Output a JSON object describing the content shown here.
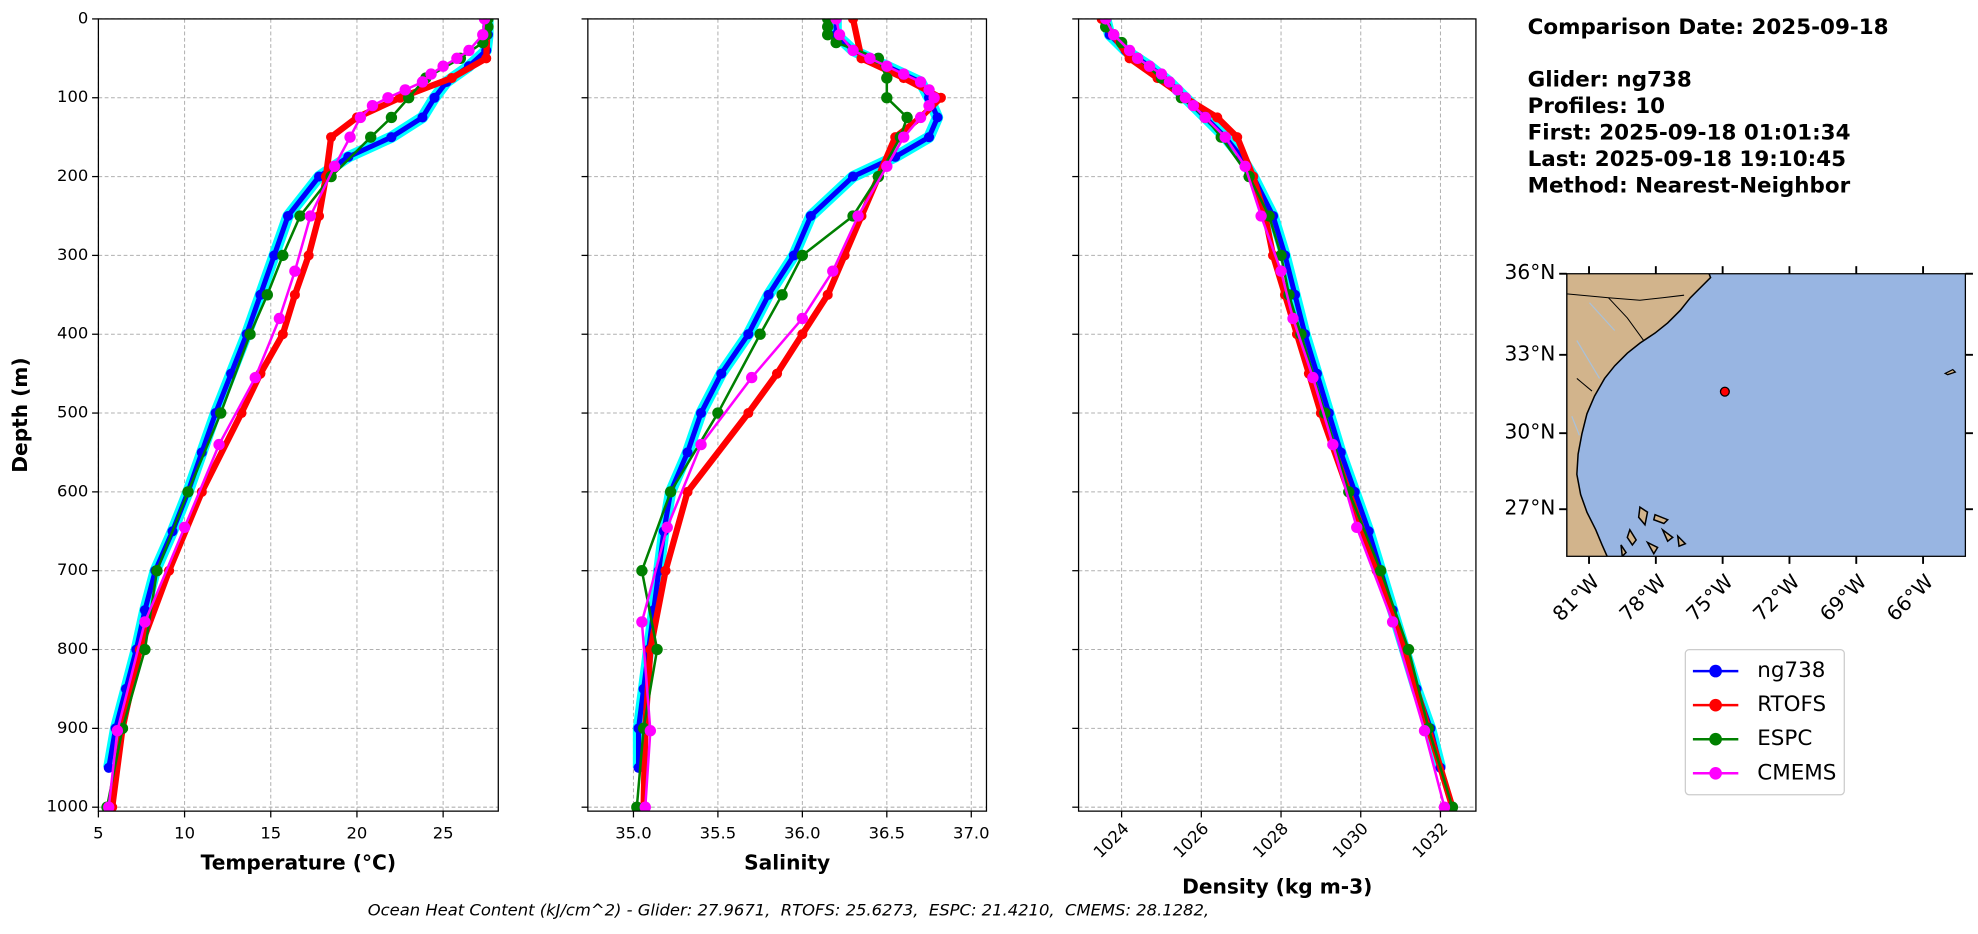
{
  "chart_data": [
    {
      "type": "profile",
      "xlabel": "Temperature (°C)",
      "ylabel": "Depth (m)",
      "legend": true,
      "grid": true,
      "xlim": [
        5,
        28.2
      ],
      "xticks": [
        5,
        10,
        15,
        20,
        25
      ],
      "ylim": [
        1005,
        0
      ],
      "yticks": [
        0,
        100,
        200,
        300,
        400,
        500,
        600,
        700,
        800,
        900,
        1000
      ],
      "series": [
        {
          "name": "ng738",
          "color": "#0000ff",
          "halo_color": "#00ffff",
          "linewidth": 4,
          "depth": [
            0,
            20,
            40,
            60,
            80,
            100,
            125,
            150,
            175,
            200,
            250,
            300,
            350,
            400,
            450,
            500,
            550,
            600,
            650,
            700,
            750,
            800,
            850,
            900,
            950
          ],
          "values": [
            27.6,
            27.6,
            27.5,
            26.5,
            25.2,
            24.5,
            23.8,
            22.0,
            19.5,
            17.8,
            16.0,
            15.2,
            14.4,
            13.6,
            12.7,
            11.8,
            11.0,
            10.2,
            9.3,
            8.3,
            7.7,
            7.2,
            6.6,
            6.0,
            5.6
          ]
        },
        {
          "name": "RTOFS",
          "color": "#ff0000",
          "linewidth": 5,
          "depth": [
            0,
            50,
            75,
            100,
            125,
            150,
            200,
            250,
            300,
            350,
            400,
            450,
            500,
            600,
            700,
            800,
            900,
            1000
          ],
          "values": [
            27.6,
            27.5,
            25.5,
            22.5,
            20.0,
            18.5,
            18.2,
            17.8,
            17.2,
            16.4,
            15.7,
            14.4,
            13.3,
            11.0,
            9.1,
            7.4,
            6.4,
            5.8
          ]
        },
        {
          "name": "ESPC",
          "color": "#008000",
          "linewidth": 2,
          "depth": [
            0,
            10,
            20,
            30,
            50,
            75,
            100,
            125,
            150,
            200,
            250,
            300,
            350,
            400,
            500,
            600,
            700,
            800,
            900,
            1000
          ],
          "values": [
            27.6,
            27.6,
            27.5,
            27.3,
            26.0,
            24.0,
            23.0,
            22.0,
            20.8,
            18.5,
            16.7,
            15.7,
            14.8,
            13.8,
            12.1,
            10.2,
            8.4,
            7.7,
            6.4,
            5.5
          ]
        },
        {
          "name": "CMEMS",
          "color": "#ff00ff",
          "linewidth": 2,
          "depth": [
            0,
            20,
            40,
            50,
            60,
            70,
            80,
            90,
            100,
            110,
            125,
            150,
            187,
            250,
            320,
            380,
            455,
            540,
            645,
            765,
            903,
            1000
          ],
          "values": [
            27.4,
            27.3,
            26.5,
            25.8,
            25.0,
            24.3,
            23.8,
            22.8,
            21.8,
            20.9,
            20.2,
            19.6,
            18.7,
            17.3,
            16.4,
            15.5,
            14.1,
            12.0,
            10.0,
            7.7,
            6.1,
            5.6
          ]
        }
      ]
    },
    {
      "type": "profile",
      "xlabel": "Salinity",
      "sharey": true,
      "grid": true,
      "xlim": [
        34.73,
        37.09
      ],
      "xticks": [
        {
          "value": 35,
          "label": "35.0"
        },
        {
          "value": 35.5,
          "label": "35.5"
        },
        {
          "value": 36,
          "label": "36.0"
        },
        {
          "value": 36.5,
          "label": "36.5"
        },
        {
          "value": 37,
          "label": "37.0"
        }
      ],
      "series": [
        {
          "name": "ng738",
          "color": "#0000ff",
          "halo_color": "#00ffff",
          "linewidth": 4,
          "depth": [
            0,
            20,
            40,
            60,
            80,
            100,
            125,
            150,
            175,
            200,
            250,
            300,
            350,
            400,
            450,
            500,
            550,
            600,
            650,
            700,
            750,
            800,
            850,
            900,
            950
          ],
          "values": [
            36.2,
            36.2,
            36.3,
            36.5,
            36.7,
            36.75,
            36.8,
            36.75,
            36.55,
            36.3,
            36.05,
            35.95,
            35.8,
            35.68,
            35.52,
            35.4,
            35.32,
            35.22,
            35.18,
            35.15,
            35.12,
            35.09,
            35.06,
            35.03,
            35.03
          ]
        },
        {
          "name": "RTOFS",
          "color": "#ff0000",
          "linewidth": 5,
          "depth": [
            0,
            50,
            75,
            100,
            125,
            150,
            200,
            250,
            300,
            350,
            400,
            450,
            500,
            600,
            700,
            800,
            900,
            1000
          ],
          "values": [
            36.3,
            36.35,
            36.6,
            36.82,
            36.7,
            36.55,
            36.45,
            36.35,
            36.25,
            36.15,
            36.0,
            35.85,
            35.68,
            35.32,
            35.19,
            35.1,
            35.07,
            35.06
          ]
        },
        {
          "name": "ESPC",
          "color": "#008000",
          "linewidth": 2,
          "depth": [
            0,
            10,
            20,
            30,
            50,
            75,
            100,
            125,
            150,
            200,
            250,
            300,
            350,
            400,
            500,
            600,
            700,
            800,
            900,
            1000
          ],
          "values": [
            36.15,
            36.15,
            36.15,
            36.2,
            36.45,
            36.5,
            36.5,
            36.62,
            36.58,
            36.45,
            36.3,
            36.0,
            35.88,
            35.75,
            35.5,
            35.22,
            35.05,
            35.14,
            35.06,
            35.02
          ]
        },
        {
          "name": "CMEMS",
          "color": "#ff00ff",
          "linewidth": 2,
          "depth": [
            0,
            20,
            40,
            50,
            60,
            70,
            80,
            90,
            100,
            110,
            125,
            150,
            187,
            250,
            320,
            380,
            455,
            540,
            645,
            765,
            903,
            1000
          ],
          "values": [
            36.2,
            36.22,
            36.3,
            36.4,
            36.5,
            36.6,
            36.7,
            36.75,
            36.78,
            36.75,
            36.7,
            36.6,
            36.5,
            36.33,
            36.18,
            36.0,
            35.7,
            35.4,
            35.2,
            35.05,
            35.1,
            35.07
          ]
        }
      ]
    },
    {
      "type": "profile",
      "xlabel": "Density (kg m-3)",
      "sharey": true,
      "grid": true,
      "xtick_rotation": 45,
      "xlim": [
        1022.92,
        1032.89
      ],
      "xticks": [
        1024,
        1026,
        1028,
        1030,
        1032
      ],
      "series": [
        {
          "name": "ng738",
          "color": "#0000ff",
          "halo_color": "#00ffff",
          "linewidth": 4,
          "depth": [
            0,
            20,
            40,
            60,
            80,
            100,
            125,
            150,
            175,
            200,
            250,
            300,
            350,
            400,
            450,
            500,
            550,
            600,
            650,
            700,
            750,
            800,
            850,
            900,
            950
          ],
          "values": [
            1023.6,
            1023.7,
            1024.1,
            1024.7,
            1025.2,
            1025.6,
            1026.1,
            1026.6,
            1027.0,
            1027.3,
            1027.8,
            1028.1,
            1028.35,
            1028.6,
            1028.9,
            1029.2,
            1029.5,
            1029.85,
            1030.2,
            1030.5,
            1030.8,
            1031.1,
            1031.4,
            1031.75,
            1032.0
          ]
        },
        {
          "name": "RTOFS",
          "color": "#ff0000",
          "linewidth": 5,
          "depth": [
            0,
            50,
            75,
            100,
            125,
            150,
            200,
            250,
            300,
            350,
            400,
            450,
            500,
            600,
            700,
            800,
            900,
            1000
          ],
          "values": [
            1023.5,
            1024.2,
            1024.9,
            1025.6,
            1026.4,
            1026.9,
            1027.3,
            1027.6,
            1027.8,
            1028.1,
            1028.4,
            1028.7,
            1029.0,
            1029.7,
            1030.4,
            1031.1,
            1031.7,
            1032.3
          ]
        },
        {
          "name": "ESPC",
          "color": "#008000",
          "linewidth": 2,
          "depth": [
            0,
            10,
            20,
            30,
            50,
            75,
            100,
            125,
            150,
            200,
            250,
            300,
            350,
            400,
            500,
            600,
            700,
            800,
            900,
            1000
          ],
          "values": [
            1023.6,
            1023.6,
            1023.8,
            1024.0,
            1024.4,
            1025.0,
            1025.5,
            1026.1,
            1026.5,
            1027.2,
            1027.7,
            1028.0,
            1028.2,
            1028.5,
            1029.1,
            1029.7,
            1030.5,
            1031.2,
            1031.7,
            1032.3
          ]
        },
        {
          "name": "CMEMS",
          "color": "#ff00ff",
          "linewidth": 2,
          "depth": [
            0,
            20,
            40,
            50,
            60,
            70,
            80,
            90,
            100,
            110,
            125,
            150,
            187,
            250,
            320,
            380,
            455,
            540,
            645,
            765,
            903,
            1000
          ],
          "values": [
            1023.6,
            1023.8,
            1024.2,
            1024.4,
            1024.7,
            1025.0,
            1025.2,
            1025.4,
            1025.6,
            1025.8,
            1026.1,
            1026.6,
            1027.1,
            1027.5,
            1028.0,
            1028.3,
            1028.8,
            1029.3,
            1029.9,
            1030.8,
            1031.6,
            1032.1
          ]
        }
      ]
    },
    {
      "type": "map",
      "projection": "mercator",
      "land_color": "#d2b48c",
      "ocean_color": "#98b5e2",
      "xlim": [
        -82,
        -64.1
      ],
      "ylim": [
        25.1,
        36
      ],
      "xticks": [
        {
          "value": -81,
          "label": "81°W"
        },
        {
          "value": -78,
          "label": "78°W"
        },
        {
          "value": -75,
          "label": "75°W"
        },
        {
          "value": -72,
          "label": "72°W"
        },
        {
          "value": -69,
          "label": "69°W"
        },
        {
          "value": -66,
          "label": "66°W"
        }
      ],
      "yticks": [
        {
          "value": 27,
          "label": "27°N"
        },
        {
          "value": 30,
          "label": "30°N"
        },
        {
          "value": 33,
          "label": "33°N"
        },
        {
          "value": 36,
          "label": "36°N"
        }
      ],
      "points": {
        "x": [
          -74.9
        ],
        "values": [
          31.6
        ],
        "color": "#ff0000"
      }
    }
  ],
  "info": {
    "title": "Comparison Date: 2025-09-18",
    "lines": [
      "Glider: ng738",
      "Profiles: 10",
      "First: 2025-09-18 01:01:34",
      "Last: 2025-09-18 19:10:45",
      "Method: Nearest-Neighbor"
    ]
  },
  "footer": "Ocean Heat Content (kJ/cm^2) - Glider: 27.9671,  RTOFS: 25.6273,  ESPC: 21.4210,  CMEMS: 28.1282,"
}
